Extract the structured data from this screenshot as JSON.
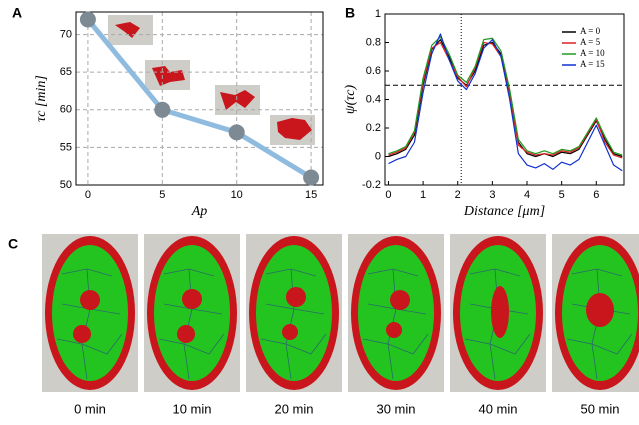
{
  "chart_data": [
    {
      "type": "line",
      "panel_label": "A",
      "xlabel": "Ap",
      "ylabel": "τc [min]",
      "x": [
        0,
        5,
        10,
        15
      ],
      "values": [
        72,
        60,
        57,
        51
      ],
      "color": "#8fbbdf",
      "marker_color": "#7d8a94",
      "xlim": [
        -0.8,
        15.8
      ],
      "ylim": [
        50,
        73
      ],
      "xticks": [
        0,
        5,
        10,
        15
      ],
      "yticks": [
        50,
        55,
        60,
        65,
        70
      ],
      "grid": true
    },
    {
      "type": "line",
      "panel_label": "B",
      "xlabel": "Distance [μm]",
      "ylabel": "ψ(τc)",
      "x": [
        0,
        0.25,
        0.5,
        0.75,
        1,
        1.25,
        1.5,
        1.75,
        2,
        2.25,
        2.5,
        2.75,
        3,
        3.25,
        3.5,
        3.75,
        4,
        4.25,
        4.5,
        4.75,
        5,
        5.25,
        5.5,
        5.75,
        6,
        6.25,
        6.5,
        6.75
      ],
      "series": [
        {
          "name": "A = 0",
          "color": "#000000",
          "values": [
            0.0,
            0.02,
            0.05,
            0.15,
            0.5,
            0.75,
            0.82,
            0.7,
            0.55,
            0.5,
            0.6,
            0.78,
            0.8,
            0.72,
            0.45,
            0.1,
            0.02,
            0.0,
            0.02,
            0.0,
            0.03,
            0.02,
            0.05,
            0.15,
            0.25,
            0.12,
            0.02,
            0.0
          ]
        },
        {
          "name": "A = 5",
          "color": "#e02020",
          "values": [
            0.01,
            0.03,
            0.06,
            0.17,
            0.52,
            0.76,
            0.8,
            0.68,
            0.56,
            0.49,
            0.62,
            0.8,
            0.79,
            0.7,
            0.43,
            0.08,
            0.03,
            0.01,
            0.02,
            0.01,
            0.04,
            0.03,
            0.06,
            0.16,
            0.26,
            0.1,
            0.01,
            -0.01
          ]
        },
        {
          "name": "A = 10",
          "color": "#1f9a1f",
          "values": [
            0.02,
            0.04,
            0.07,
            0.18,
            0.55,
            0.78,
            0.84,
            0.72,
            0.57,
            0.52,
            0.63,
            0.82,
            0.83,
            0.74,
            0.47,
            0.12,
            0.04,
            0.02,
            0.04,
            0.02,
            0.05,
            0.04,
            0.07,
            0.17,
            0.27,
            0.14,
            0.03,
            0.01
          ]
        },
        {
          "name": "A = 15",
          "color": "#1030d0",
          "values": [
            -0.05,
            -0.02,
            0.0,
            0.1,
            0.45,
            0.72,
            0.86,
            0.68,
            0.53,
            0.47,
            0.58,
            0.76,
            0.82,
            0.7,
            0.4,
            0.02,
            -0.06,
            -0.08,
            -0.05,
            -0.09,
            -0.04,
            -0.06,
            -0.02,
            0.1,
            0.22,
            0.08,
            -0.06,
            -0.1
          ]
        }
      ],
      "xlim": [
        -0.1,
        6.8
      ],
      "ylim": [
        -0.2,
        1.0
      ],
      "xticks": [
        0,
        1,
        2,
        3,
        4,
        5,
        6
      ],
      "yticks": [
        -0.2,
        0,
        0.2,
        0.4,
        0.6,
        0.8,
        1
      ],
      "hline": 0.5,
      "vline": 2.1,
      "grid": false,
      "legend": "upper right"
    }
  ],
  "panel_c": {
    "label": "C",
    "frames": [
      "0 min",
      "10 min",
      "20 min",
      "30 min",
      "40 min",
      "50 min"
    ]
  }
}
